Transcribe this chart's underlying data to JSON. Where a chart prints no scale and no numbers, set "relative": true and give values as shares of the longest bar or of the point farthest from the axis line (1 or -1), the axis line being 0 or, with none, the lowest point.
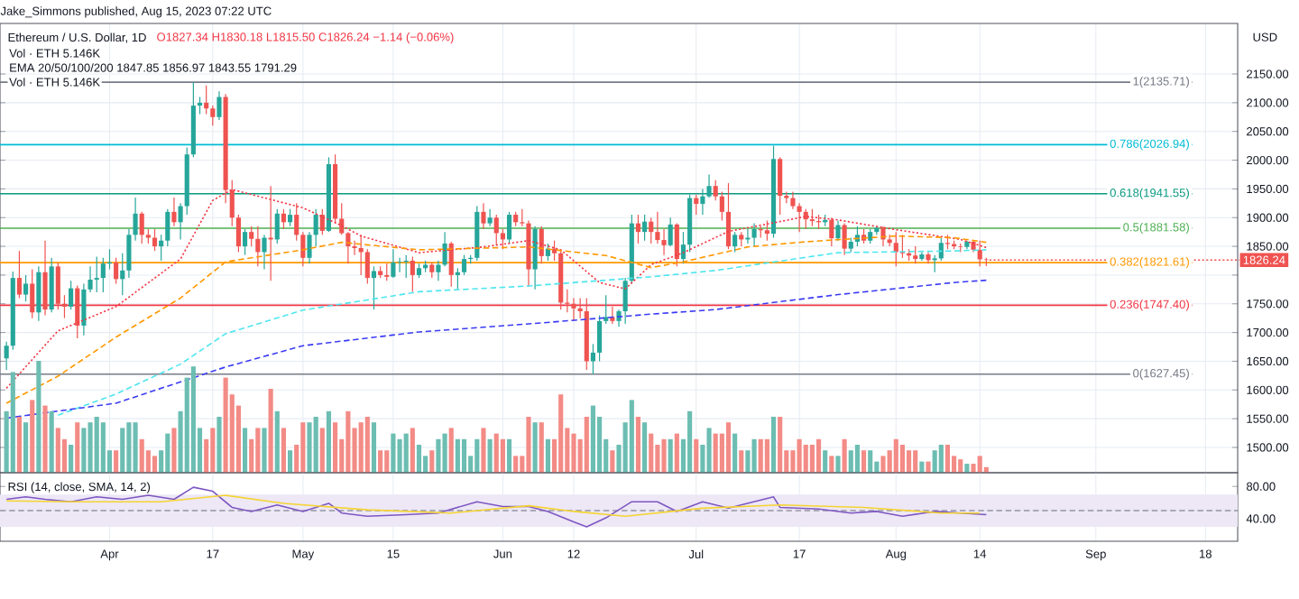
{
  "chart_data": [
    {
      "type": "candlestick",
      "subtitle": "Jake_Simmons published, Aug 15, 2023 07:22 UTC",
      "title": "Ethereum / U.S. Dollar, 1D",
      "ylabel": "USD",
      "annotations": [
        "O1827.34 H1830.18 L1815.50 C1826.24 −1.14 (−0.06%)",
        "Vol · ETH 5.146K",
        "EMA 20/50/100/200 1847.85 1856.97 1843.55 1791.29",
        "Vol · ETH 5.146K",
        {
          "text": "1826.24",
          "x": "2023-08-15",
          "y": 1826.24
        }
      ],
      "x": [
        "2023-03-16",
        "2023-03-17",
        "2023-03-18",
        "2023-03-19",
        "2023-03-20",
        "2023-03-21",
        "2023-03-22",
        "2023-03-23",
        "2023-03-24",
        "2023-03-25",
        "2023-03-26",
        "2023-03-27",
        "2023-03-28",
        "2023-03-29",
        "2023-03-30",
        "2023-03-31",
        "2023-04-01",
        "2023-04-02",
        "2023-04-03",
        "2023-04-04",
        "2023-04-05",
        "2023-04-06",
        "2023-04-07",
        "2023-04-08",
        "2023-04-09",
        "2023-04-10",
        "2023-04-11",
        "2023-04-12",
        "2023-04-13",
        "2023-04-14",
        "2023-04-15",
        "2023-04-16",
        "2023-04-17",
        "2023-04-18",
        "2023-04-19",
        "2023-04-20",
        "2023-04-21",
        "2023-04-22",
        "2023-04-23",
        "2023-04-24",
        "2023-04-25",
        "2023-04-26",
        "2023-04-27",
        "2023-04-28",
        "2023-04-29",
        "2023-04-30",
        "2023-05-01",
        "2023-05-02",
        "2023-05-03",
        "2023-05-04",
        "2023-05-05",
        "2023-05-06",
        "2023-05-07",
        "2023-05-08",
        "2023-05-09",
        "2023-05-10",
        "2023-05-11",
        "2023-05-12",
        "2023-05-13",
        "2023-05-14",
        "2023-05-15",
        "2023-05-16",
        "2023-05-17",
        "2023-05-18",
        "2023-05-19",
        "2023-05-20",
        "2023-05-21",
        "2023-05-22",
        "2023-05-23",
        "2023-05-24",
        "2023-05-25",
        "2023-05-26",
        "2023-05-27",
        "2023-05-28",
        "2023-05-29",
        "2023-05-30",
        "2023-05-31",
        "2023-06-01",
        "2023-06-02",
        "2023-06-03",
        "2023-06-04",
        "2023-06-05",
        "2023-06-06",
        "2023-06-07",
        "2023-06-08",
        "2023-06-09",
        "2023-06-10",
        "2023-06-11",
        "2023-06-12",
        "2023-06-13",
        "2023-06-14",
        "2023-06-15",
        "2023-06-16",
        "2023-06-17",
        "2023-06-18",
        "2023-06-19",
        "2023-06-20",
        "2023-06-21",
        "2023-06-22",
        "2023-06-23",
        "2023-06-24",
        "2023-06-25",
        "2023-06-26",
        "2023-06-27",
        "2023-06-28",
        "2023-06-29",
        "2023-06-30",
        "2023-07-01",
        "2023-07-02",
        "2023-07-03",
        "2023-07-04",
        "2023-07-05",
        "2023-07-06",
        "2023-07-07",
        "2023-07-08",
        "2023-07-09",
        "2023-07-10",
        "2023-07-11",
        "2023-07-12",
        "2023-07-13",
        "2023-07-14",
        "2023-07-15",
        "2023-07-16",
        "2023-07-17",
        "2023-07-18",
        "2023-07-19",
        "2023-07-20",
        "2023-07-21",
        "2023-07-22",
        "2023-07-23",
        "2023-07-24",
        "2023-07-25",
        "2023-07-26",
        "2023-07-27",
        "2023-07-28",
        "2023-07-29",
        "2023-07-30",
        "2023-07-31",
        "2023-08-01",
        "2023-08-02",
        "2023-08-03",
        "2023-08-04",
        "2023-08-05",
        "2023-08-06",
        "2023-08-07",
        "2023-08-08",
        "2023-08-09",
        "2023-08-10",
        "2023-08-11",
        "2023-08-12",
        "2023-08-13",
        "2023-08-14",
        "2023-08-15"
      ],
      "ohlc": [
        [
          1655,
          1684,
          1635,
          1677
        ],
        [
          1677,
          1806,
          1670,
          1795
        ],
        [
          1795,
          1842,
          1760,
          1766
        ],
        [
          1766,
          1800,
          1754,
          1785
        ],
        [
          1785,
          1810,
          1725,
          1735
        ],
        [
          1735,
          1815,
          1720,
          1805
        ],
        [
          1805,
          1860,
          1730,
          1740
        ],
        [
          1740,
          1830,
          1735,
          1815
        ],
        [
          1815,
          1822,
          1740,
          1750
        ],
        [
          1750,
          1765,
          1725,
          1745
        ],
        [
          1745,
          1790,
          1740,
          1777
        ],
        [
          1777,
          1782,
          1690,
          1712
        ],
        [
          1712,
          1785,
          1695,
          1775
        ],
        [
          1775,
          1815,
          1770,
          1792
        ],
        [
          1792,
          1832,
          1770,
          1795
        ],
        [
          1795,
          1830,
          1770,
          1820
        ],
        [
          1820,
          1845,
          1810,
          1822
        ],
        [
          1822,
          1830,
          1785,
          1793
        ],
        [
          1793,
          1838,
          1765,
          1808
        ],
        [
          1808,
          1880,
          1795,
          1870
        ],
        [
          1870,
          1935,
          1860,
          1907
        ],
        [
          1907,
          1910,
          1855,
          1870
        ],
        [
          1870,
          1880,
          1855,
          1865
        ],
        [
          1865,
          1880,
          1842,
          1850
        ],
        [
          1850,
          1870,
          1825,
          1860
        ],
        [
          1860,
          1915,
          1850,
          1910
        ],
        [
          1910,
          1935,
          1885,
          1892
        ],
        [
          1892,
          1925,
          1862,
          1920
        ],
        [
          1920,
          2022,
          1905,
          2010
        ],
        [
          2010,
          2135.71,
          2005,
          2095
        ],
        [
          2095,
          2110,
          2080,
          2100
        ],
        [
          2100,
          2130,
          2080,
          2090
        ],
        [
          2090,
          2095,
          2060,
          2075
        ],
        [
          2075,
          2120,
          2070,
          2110
        ],
        [
          2110,
          2115,
          1925,
          1948
        ],
        [
          1948,
          1965,
          1885,
          1900
        ],
        [
          1900,
          1905,
          1840,
          1850
        ],
        [
          1850,
          1880,
          1835,
          1875
        ],
        [
          1875,
          1885,
          1850,
          1863
        ],
        [
          1863,
          1885,
          1815,
          1840
        ],
        [
          1840,
          1870,
          1810,
          1865
        ],
        [
          1865,
          1955,
          1790,
          1862
        ],
        [
          1862,
          1915,
          1855,
          1907
        ],
        [
          1907,
          1915,
          1880,
          1892
        ],
        [
          1892,
          1915,
          1885,
          1905
        ],
        [
          1905,
          1925,
          1860,
          1870
        ],
        [
          1870,
          1875,
          1815,
          1830
        ],
        [
          1830,
          1875,
          1820,
          1870
        ],
        [
          1870,
          1915,
          1850,
          1905
        ],
        [
          1905,
          1915,
          1870,
          1877
        ],
        [
          1877,
          2005,
          1875,
          1993
        ],
        [
          1993,
          2010,
          1890,
          1898
        ],
        [
          1898,
          1925,
          1870,
          1873
        ],
        [
          1873,
          1875,
          1820,
          1850
        ],
        [
          1850,
          1860,
          1835,
          1847
        ],
        [
          1847,
          1870,
          1800,
          1840
        ],
        [
          1840,
          1845,
          1785,
          1795
        ],
        [
          1795,
          1815,
          1740,
          1807
        ],
        [
          1807,
          1815,
          1795,
          1800
        ],
        [
          1800,
          1820,
          1790,
          1797
        ],
        [
          1797,
          1845,
          1795,
          1822
        ],
        [
          1822,
          1830,
          1805,
          1823
        ],
        [
          1823,
          1835,
          1795,
          1825
        ],
        [
          1825,
          1832,
          1771,
          1800
        ],
        [
          1800,
          1820,
          1795,
          1812
        ],
        [
          1812,
          1825,
          1805,
          1818
        ],
        [
          1818,
          1822,
          1795,
          1805
        ],
        [
          1805,
          1825,
          1790,
          1818
        ],
        [
          1818,
          1875,
          1815,
          1855
        ],
        [
          1855,
          1858,
          1780,
          1800
        ],
        [
          1800,
          1812,
          1775,
          1805
        ],
        [
          1805,
          1835,
          1800,
          1828
        ],
        [
          1828,
          1835,
          1820,
          1830
        ],
        [
          1830,
          1920,
          1825,
          1910
        ],
        [
          1910,
          1925,
          1880,
          1890
        ],
        [
          1890,
          1915,
          1885,
          1900
        ],
        [
          1900,
          1905,
          1852,
          1873
        ],
        [
          1873,
          1880,
          1845,
          1862
        ],
        [
          1862,
          1910,
          1855,
          1905
        ],
        [
          1905,
          1910,
          1885,
          1892
        ],
        [
          1892,
          1915,
          1885,
          1890
        ],
        [
          1890,
          1895,
          1780,
          1810
        ],
        [
          1810,
          1885,
          1775,
          1880
        ],
        [
          1880,
          1885,
          1820,
          1833
        ],
        [
          1833,
          1855,
          1825,
          1846
        ],
        [
          1846,
          1860,
          1825,
          1838
        ],
        [
          1838,
          1842,
          1740,
          1752
        ],
        [
          1752,
          1775,
          1735,
          1750
        ],
        [
          1750,
          1760,
          1720,
          1742
        ],
        [
          1742,
          1760,
          1725,
          1737
        ],
        [
          1737,
          1760,
          1635,
          1650
        ],
        [
          1650,
          1680,
          1627.45,
          1665
        ],
        [
          1665,
          1730,
          1650,
          1720
        ],
        [
          1720,
          1765,
          1715,
          1727
        ],
        [
          1727,
          1745,
          1715,
          1720
        ],
        [
          1720,
          1740,
          1710,
          1737
        ],
        [
          1737,
          1795,
          1715,
          1790
        ],
        [
          1790,
          1905,
          1785,
          1890
        ],
        [
          1890,
          1905,
          1855,
          1875
        ],
        [
          1875,
          1905,
          1860,
          1893
        ],
        [
          1893,
          1900,
          1855,
          1875
        ],
        [
          1875,
          1910,
          1855,
          1861
        ],
        [
          1861,
          1880,
          1835,
          1852
        ],
        [
          1852,
          1900,
          1850,
          1888
        ],
        [
          1888,
          1890,
          1815,
          1828
        ],
        [
          1828,
          1875,
          1820,
          1853
        ],
        [
          1853,
          1940,
          1840,
          1934
        ],
        [
          1934,
          1940,
          1905,
          1924
        ],
        [
          1924,
          1950,
          1905,
          1937
        ],
        [
          1937,
          1975,
          1935,
          1955
        ],
        [
          1955,
          1965,
          1930,
          1937
        ],
        [
          1937,
          1945,
          1895,
          1910
        ],
        [
          1910,
          1960,
          1845,
          1850
        ],
        [
          1850,
          1875,
          1840,
          1870
        ],
        [
          1870,
          1875,
          1850,
          1862
        ],
        [
          1862,
          1880,
          1855,
          1865
        ],
        [
          1865,
          1890,
          1850,
          1880
        ],
        [
          1880,
          1885,
          1865,
          1878
        ],
        [
          1878,
          1895,
          1860,
          1872
        ],
        [
          1872,
          2025,
          1865,
          2002
        ],
        [
          2002,
          2005,
          1905,
          1938
        ],
        [
          1938,
          1945,
          1925,
          1934
        ],
        [
          1934,
          1945,
          1915,
          1920
        ],
        [
          1920,
          1925,
          1875,
          1910
        ],
        [
          1910,
          1915,
          1880,
          1897
        ],
        [
          1897,
          1915,
          1885,
          1894
        ],
        [
          1894,
          1905,
          1880,
          1892
        ],
        [
          1892,
          1905,
          1885,
          1896
        ],
        [
          1896,
          1900,
          1850,
          1864
        ],
        [
          1864,
          1895,
          1860,
          1887
        ],
        [
          1887,
          1890,
          1835,
          1846
        ],
        [
          1846,
          1865,
          1840,
          1858
        ],
        [
          1858,
          1885,
          1850,
          1870
        ],
        [
          1870,
          1880,
          1855,
          1860
        ],
        [
          1860,
          1880,
          1855,
          1875
        ],
        [
          1875,
          1885,
          1870,
          1882
        ],
        [
          1882,
          1885,
          1850,
          1862
        ],
        [
          1862,
          1870,
          1850,
          1856
        ],
        [
          1856,
          1875,
          1815,
          1840
        ],
        [
          1840,
          1870,
          1830,
          1838
        ],
        [
          1838,
          1845,
          1825,
          1834
        ],
        [
          1834,
          1850,
          1820,
          1828
        ],
        [
          1828,
          1840,
          1825,
          1836
        ],
        [
          1836,
          1840,
          1820,
          1826
        ],
        [
          1826,
          1835,
          1805,
          1829
        ],
        [
          1829,
          1865,
          1825,
          1856
        ],
        [
          1856,
          1870,
          1845,
          1854
        ],
        [
          1854,
          1860,
          1845,
          1850
        ],
        [
          1850,
          1855,
          1840,
          1849
        ],
        [
          1849,
          1860,
          1845,
          1858
        ],
        [
          1858,
          1860,
          1840,
          1844
        ],
        [
          1844,
          1860,
          1815,
          1827.34
        ],
        [
          1827.34,
          1830.18,
          1815.5,
          1826.24
        ]
      ],
      "colors": [
        "#26a69a",
        "#26a69a",
        "#ef5350",
        "#26a69a",
        "#ef5350",
        "#26a69a",
        "#ef5350",
        "#26a69a",
        "#ef5350",
        "#ef5350",
        "#26a69a",
        "#ef5350",
        "#26a69a",
        "#26a69a",
        "#26a69a",
        "#26a69a",
        "#26a69a",
        "#ef5350",
        "#26a69a",
        "#26a69a",
        "#26a69a",
        "#ef5350",
        "#ef5350",
        "#ef5350",
        "#26a69a",
        "#26a69a",
        "#ef5350",
        "#26a69a",
        "#26a69a",
        "#26a69a",
        "#26a69a",
        "#ef5350",
        "#ef5350",
        "#26a69a",
        "#ef5350",
        "#ef5350",
        "#ef5350",
        "#26a69a",
        "#ef5350",
        "#ef5350",
        "#26a69a",
        "#ef5350",
        "#26a69a",
        "#ef5350",
        "#26a69a",
        "#ef5350",
        "#ef5350",
        "#26a69a",
        "#26a69a",
        "#ef5350",
        "#26a69a",
        "#ef5350",
        "#ef5350",
        "#ef5350",
        "#ef5350",
        "#ef5350",
        "#ef5350",
        "#26a69a",
        "#ef5350",
        "#ef5350",
        "#26a69a",
        "#26a69a",
        "#26a69a",
        "#ef5350",
        "#26a69a",
        "#26a69a",
        "#ef5350",
        "#26a69a",
        "#26a69a",
        "#ef5350",
        "#26a69a",
        "#26a69a",
        "#26a69a",
        "#26a69a",
        "#ef5350",
        "#26a69a",
        "#ef5350",
        "#ef5350",
        "#26a69a",
        "#ef5350",
        "#ef5350",
        "#ef5350",
        "#26a69a",
        "#ef5350",
        "#26a69a",
        "#ef5350",
        "#ef5350",
        "#ef5350",
        "#ef5350",
        "#ef5350",
        "#ef5350",
        "#26a69a",
        "#26a69a",
        "#26a69a",
        "#ef5350",
        "#26a69a",
        "#26a69a",
        "#26a69a",
        "#ef5350",
        "#26a69a",
        "#ef5350",
        "#ef5350",
        "#ef5350",
        "#26a69a",
        "#ef5350",
        "#26a69a",
        "#26a69a",
        "#ef5350",
        "#26a69a",
        "#26a69a",
        "#ef5350",
        "#ef5350",
        "#ef5350",
        "#26a69a",
        "#ef5350",
        "#26a69a",
        "#26a69a",
        "#ef5350",
        "#ef5350",
        "#26a69a",
        "#ef5350",
        "#ef5350",
        "#ef5350",
        "#ef5350",
        "#ef5350",
        "#ef5350",
        "#ef5350",
        "#26a69a",
        "#ef5350",
        "#26a69a",
        "#ef5350",
        "#26a69a",
        "#26a69a",
        "#ef5350",
        "#26a69a",
        "#26a69a",
        "#ef5350",
        "#ef5350",
        "#ef5350",
        "#ef5350",
        "#ef5350",
        "#ef5350",
        "#26a69a",
        "#ef5350",
        "#26a69a",
        "#26a69a",
        "#ef5350",
        "#ef5350",
        "#ef5350",
        "#26a69a",
        "#ef5350",
        "#ef5350",
        "#ef5350"
      ],
      "series": [
        {
          "type": "line",
          "color": "#f23645",
          "line_style": "dotted",
          "x": [
            "2023-03-16",
            "2023-03-24",
            "2023-04-02",
            "2023-04-12",
            "2023-04-17",
            "2023-04-20",
            "2023-05-01",
            "2023-05-07",
            "2023-05-10",
            "2023-05-19",
            "2023-05-29",
            "2023-06-05",
            "2023-06-10",
            "2023-06-16",
            "2023-06-20",
            "2023-06-24",
            "2023-06-29",
            "2023-07-06",
            "2023-07-13",
            "2023-07-18",
            "2023-07-23",
            "2023-08-01",
            "2023-08-11",
            "2023-08-15"
          ],
          "values": [
            1603,
            1703,
            1745,
            1828,
            1930,
            1949,
            1917,
            1886,
            1868,
            1839,
            1849,
            1860,
            1844,
            1787,
            1776,
            1818,
            1839,
            1876,
            1891,
            1902,
            1896,
            1879,
            1862,
            1848
          ]
        },
        {
          "type": "line",
          "color": "#ff9800",
          "line_style": "dashed",
          "x": [
            "2023-03-16",
            "2023-03-24",
            "2023-04-02",
            "2023-04-12",
            "2023-04-19",
            "2023-05-01",
            "2023-05-07",
            "2023-05-19",
            "2023-06-05",
            "2023-06-17",
            "2023-06-24",
            "2023-06-29",
            "2023-07-09",
            "2023-07-18",
            "2023-08-01",
            "2023-08-10",
            "2023-08-15"
          ],
          "values": [
            1577,
            1624,
            1692,
            1760,
            1823,
            1844,
            1857,
            1844,
            1849,
            1834,
            1813,
            1823,
            1849,
            1858,
            1868,
            1865,
            1857
          ]
        },
        {
          "type": "line",
          "color": "#4ee6ee",
          "line_style": "dashed",
          "x": [
            "2023-03-24",
            "2023-04-02",
            "2023-04-12",
            "2023-04-19",
            "2023-05-01",
            "2023-05-19",
            "2023-06-05",
            "2023-06-24",
            "2023-07-04",
            "2023-07-23",
            "2023-08-10",
            "2023-08-15"
          ],
          "values": [
            1556,
            1593,
            1645,
            1698,
            1739,
            1771,
            1781,
            1797,
            1808,
            1839,
            1842,
            1844
          ]
        },
        {
          "type": "line",
          "color": "#3b3bf5",
          "line_style": "dashed",
          "x": [
            "2023-03-16",
            "2023-04-02",
            "2023-04-19",
            "2023-05-01",
            "2023-05-19",
            "2023-06-05",
            "2023-06-24",
            "2023-07-04",
            "2023-07-23",
            "2023-08-10",
            "2023-08-15"
          ],
          "values": [
            1551,
            1577,
            1640,
            1677,
            1701,
            1715,
            1732,
            1740,
            1766,
            1787,
            1791
          ]
        }
      ],
      "xlim": [
        "2023-03-15",
        "2023-09-23"
      ],
      "ylim": [
        1456,
        2238
      ],
      "xticks": [
        {
          "value": "2023-04-01",
          "label": null
        },
        {
          "value": "2023-04-17",
          "label": null
        },
        {
          "value": "2023-05-01",
          "label": null
        },
        {
          "value": "2023-05-15",
          "label": null
        },
        {
          "value": "2023-06-01",
          "label": null
        },
        {
          "value": "2023-06-12",
          "label": null
        },
        {
          "value": "2023-07-01",
          "label": null
        },
        {
          "value": "2023-07-17",
          "label": null
        },
        {
          "value": "2023-08-01",
          "label": null
        },
        {
          "value": "2023-08-14",
          "label": null
        },
        {
          "value": "2023-09-01",
          "label": null
        },
        {
          "value": "2023-09-18",
          "label": null
        }
      ],
      "yticks": [
        {
          "value": 1500,
          "label": "1500.00"
        },
        {
          "value": 1550,
          "label": "1550.00"
        },
        {
          "value": 1600,
          "label": "1600.00"
        },
        {
          "value": 1650,
          "label": "1650.00"
        },
        {
          "value": 1700,
          "label": "1700.00"
        },
        {
          "value": 1750,
          "label": "1750.00"
        },
        {
          "value": 1800,
          "label": null
        },
        {
          "value": 1850,
          "label": "1850.00"
        },
        {
          "value": 1900,
          "label": "1900.00"
        },
        {
          "value": 1950,
          "label": "1950.00"
        },
        {
          "value": 2000,
          "label": "2000.00"
        },
        {
          "value": 2050,
          "label": "2050.00"
        },
        {
          "value": 2100,
          "label": "2100.00"
        },
        {
          "value": 2150,
          "label": "2150.00"
        }
      ],
      "ref_lines": [
        {
          "axis": "y",
          "value": 2135.71,
          "label": "1(2135.71)",
          "color": "#787b86",
          "line_style": "solid"
        },
        {
          "axis": "y",
          "value": 2026.94,
          "label": "0.786(2026.94)",
          "color": "#00bcd4",
          "line_style": "solid"
        },
        {
          "axis": "y",
          "value": 1941.55,
          "label": "0.618(1941.55)",
          "color": "#089981",
          "line_style": "solid"
        },
        {
          "axis": "y",
          "value": 1881.58,
          "label": "0.5(1881.58)",
          "color": "#4caf50",
          "line_style": "solid"
        },
        {
          "axis": "y",
          "value": 1821.61,
          "label": "0.382(1821.61)",
          "color": "#ff9800",
          "line_style": "solid"
        },
        {
          "axis": "y",
          "value": 1747.4,
          "label": "0.236(1747.40)",
          "color": "#f23645",
          "line_style": "solid"
        },
        {
          "axis": "y",
          "value": 1627.45,
          "label": "0(1627.45)",
          "color": "#787b86",
          "line_style": "solid"
        }
      ],
      "grid": true,
      "tick_labels": "y"
    },
    {
      "type": "bar",
      "relative": true,
      "tick_labels": false,
      "xlim": [
        "2023-03-15",
        "2023-09-23"
      ],
      "x": [
        "2023-03-16",
        "2023-03-17",
        "2023-03-18",
        "2023-03-19",
        "2023-03-20",
        "2023-03-21",
        "2023-03-22",
        "2023-03-23",
        "2023-03-24",
        "2023-03-25",
        "2023-03-26",
        "2023-03-27",
        "2023-03-28",
        "2023-03-29",
        "2023-03-30",
        "2023-03-31",
        "2023-04-01",
        "2023-04-02",
        "2023-04-03",
        "2023-04-04",
        "2023-04-05",
        "2023-04-06",
        "2023-04-07",
        "2023-04-08",
        "2023-04-09",
        "2023-04-10",
        "2023-04-11",
        "2023-04-12",
        "2023-04-13",
        "2023-04-14",
        "2023-04-15",
        "2023-04-16",
        "2023-04-17",
        "2023-04-18",
        "2023-04-19",
        "2023-04-20",
        "2023-04-21",
        "2023-04-22",
        "2023-04-23",
        "2023-04-24",
        "2023-04-25",
        "2023-04-26",
        "2023-04-27",
        "2023-04-28",
        "2023-04-29",
        "2023-04-30",
        "2023-05-01",
        "2023-05-02",
        "2023-05-03",
        "2023-05-04",
        "2023-05-05",
        "2023-05-06",
        "2023-05-07",
        "2023-05-08",
        "2023-05-09",
        "2023-05-10",
        "2023-05-11",
        "2023-05-12",
        "2023-05-13",
        "2023-05-14",
        "2023-05-15",
        "2023-05-16",
        "2023-05-17",
        "2023-05-18",
        "2023-05-19",
        "2023-05-20",
        "2023-05-21",
        "2023-05-22",
        "2023-05-23",
        "2023-05-24",
        "2023-05-25",
        "2023-05-26",
        "2023-05-27",
        "2023-05-28",
        "2023-05-29",
        "2023-05-30",
        "2023-05-31",
        "2023-06-01",
        "2023-06-02",
        "2023-06-03",
        "2023-06-04",
        "2023-06-05",
        "2023-06-06",
        "2023-06-07",
        "2023-06-08",
        "2023-06-09",
        "2023-06-10",
        "2023-06-11",
        "2023-06-12",
        "2023-06-13",
        "2023-06-14",
        "2023-06-15",
        "2023-06-16",
        "2023-06-17",
        "2023-06-18",
        "2023-06-19",
        "2023-06-20",
        "2023-06-21",
        "2023-06-22",
        "2023-06-23",
        "2023-06-24",
        "2023-06-25",
        "2023-06-26",
        "2023-06-27",
        "2023-06-28",
        "2023-06-29",
        "2023-06-30",
        "2023-07-01",
        "2023-07-02",
        "2023-07-03",
        "2023-07-04",
        "2023-07-05",
        "2023-07-06",
        "2023-07-07",
        "2023-07-08",
        "2023-07-09",
        "2023-07-10",
        "2023-07-11",
        "2023-07-12",
        "2023-07-13",
        "2023-07-14",
        "2023-07-15",
        "2023-07-16",
        "2023-07-17",
        "2023-07-18",
        "2023-07-19",
        "2023-07-20",
        "2023-07-21",
        "2023-07-22",
        "2023-07-23",
        "2023-07-24",
        "2023-07-25",
        "2023-07-26",
        "2023-07-27",
        "2023-07-28",
        "2023-07-29",
        "2023-07-30",
        "2023-07-31",
        "2023-08-01",
        "2023-08-02",
        "2023-08-03",
        "2023-08-04",
        "2023-08-05",
        "2023-08-06",
        "2023-08-07",
        "2023-08-08",
        "2023-08-09",
        "2023-08-10",
        "2023-08-11",
        "2023-08-12",
        "2023-08-13",
        "2023-08-14",
        "2023-08-15"
      ],
      "values": [
        0.55,
        0.9,
        0.5,
        0.45,
        0.65,
        1.0,
        0.6,
        0.55,
        0.4,
        0.3,
        0.25,
        0.45,
        0.4,
        0.45,
        0.5,
        0.45,
        0.2,
        0.2,
        0.4,
        0.45,
        0.45,
        0.3,
        0.2,
        0.15,
        0.2,
        0.35,
        0.4,
        0.55,
        0.85,
        0.95,
        0.4,
        0.3,
        0.4,
        0.5,
        0.85,
        0.7,
        0.6,
        0.4,
        0.3,
        0.4,
        0.4,
        0.75,
        0.55,
        0.4,
        0.2,
        0.25,
        0.45,
        0.45,
        0.5,
        0.4,
        0.55,
        0.45,
        0.3,
        0.55,
        0.4,
        0.45,
        0.5,
        0.45,
        0.2,
        0.2,
        0.35,
        0.3,
        0.35,
        0.4,
        0.25,
        0.15,
        0.2,
        0.3,
        0.35,
        0.4,
        0.3,
        0.3,
        0.15,
        0.3,
        0.4,
        0.3,
        0.35,
        0.3,
        0.3,
        0.15,
        0.15,
        0.5,
        0.45,
        0.45,
        0.3,
        0.3,
        0.7,
        0.4,
        0.35,
        0.3,
        0.5,
        0.6,
        0.5,
        0.3,
        0.2,
        0.25,
        0.45,
        0.65,
        0.5,
        0.45,
        0.35,
        0.25,
        0.3,
        0.3,
        0.35,
        0.3,
        0.55,
        0.3,
        0.25,
        0.4,
        0.35,
        0.35,
        0.45,
        0.35,
        0.2,
        0.2,
        0.3,
        0.3,
        0.3,
        0.5,
        0.5,
        0.2,
        0.2,
        0.3,
        0.25,
        0.25,
        0.3,
        0.2,
        0.15,
        0.15,
        0.3,
        0.2,
        0.25,
        0.2,
        0.2,
        0.1,
        0.15,
        0.2,
        0.3,
        0.25,
        0.2,
        0.2,
        0.1,
        0.1,
        0.2,
        0.25,
        0.25,
        0.15,
        0.12,
        0.08,
        0.08,
        0.15,
        0.05
      ],
      "colors": [
        "#6cbdb2",
        "#6cbdb2",
        "#f38b86",
        "#6cbdb2",
        "#f38b86",
        "#6cbdb2",
        "#f38b86",
        "#6cbdb2",
        "#f38b86",
        "#f38b86",
        "#6cbdb2",
        "#f38b86",
        "#6cbdb2",
        "#6cbdb2",
        "#6cbdb2",
        "#6cbdb2",
        "#6cbdb2",
        "#f38b86",
        "#6cbdb2",
        "#6cbdb2",
        "#6cbdb2",
        "#f38b86",
        "#f38b86",
        "#f38b86",
        "#6cbdb2",
        "#6cbdb2",
        "#f38b86",
        "#6cbdb2",
        "#6cbdb2",
        "#6cbdb2",
        "#6cbdb2",
        "#f38b86",
        "#f38b86",
        "#6cbdb2",
        "#f38b86",
        "#f38b86",
        "#f38b86",
        "#6cbdb2",
        "#f38b86",
        "#f38b86",
        "#6cbdb2",
        "#f38b86",
        "#6cbdb2",
        "#f38b86",
        "#6cbdb2",
        "#f38b86",
        "#f38b86",
        "#6cbdb2",
        "#6cbdb2",
        "#f38b86",
        "#6cbdb2",
        "#f38b86",
        "#f38b86",
        "#f38b86",
        "#f38b86",
        "#f38b86",
        "#f38b86",
        "#6cbdb2",
        "#f38b86",
        "#f38b86",
        "#6cbdb2",
        "#6cbdb2",
        "#6cbdb2",
        "#f38b86",
        "#6cbdb2",
        "#6cbdb2",
        "#f38b86",
        "#6cbdb2",
        "#6cbdb2",
        "#f38b86",
        "#6cbdb2",
        "#6cbdb2",
        "#6cbdb2",
        "#6cbdb2",
        "#f38b86",
        "#6cbdb2",
        "#f38b86",
        "#f38b86",
        "#6cbdb2",
        "#f38b86",
        "#f38b86",
        "#f38b86",
        "#6cbdb2",
        "#f38b86",
        "#6cbdb2",
        "#f38b86",
        "#f38b86",
        "#f38b86",
        "#f38b86",
        "#f38b86",
        "#f38b86",
        "#6cbdb2",
        "#6cbdb2",
        "#6cbdb2",
        "#f38b86",
        "#6cbdb2",
        "#6cbdb2",
        "#6cbdb2",
        "#f38b86",
        "#6cbdb2",
        "#f38b86",
        "#f38b86",
        "#f38b86",
        "#6cbdb2",
        "#f38b86",
        "#6cbdb2",
        "#6cbdb2",
        "#f38b86",
        "#6cbdb2",
        "#6cbdb2",
        "#f38b86",
        "#f38b86",
        "#f38b86",
        "#6cbdb2",
        "#f38b86",
        "#6cbdb2",
        "#6cbdb2",
        "#f38b86",
        "#f38b86",
        "#6cbdb2",
        "#f38b86",
        "#f38b86",
        "#f38b86",
        "#f38b86",
        "#f38b86",
        "#f38b86",
        "#f38b86",
        "#6cbdb2",
        "#f38b86",
        "#6cbdb2",
        "#f38b86",
        "#6cbdb2",
        "#6cbdb2",
        "#f38b86",
        "#6cbdb2",
        "#6cbdb2",
        "#f38b86",
        "#f38b86",
        "#f38b86",
        "#f38b86",
        "#f38b86",
        "#f38b86",
        "#6cbdb2",
        "#f38b86",
        "#6cbdb2",
        "#6cbdb2",
        "#f38b86",
        "#f38b86",
        "#f38b86",
        "#6cbdb2",
        "#f38b86",
        "#f38b86",
        "#f38b86"
      ]
    },
    {
      "type": "line",
      "title": "RSI (14, close, SMA, 14, 2)",
      "series": [
        {
          "color": "#7e57c2",
          "x": [
            "2023-03-16",
            "2023-03-19",
            "2023-03-22",
            "2023-03-26",
            "2023-03-30",
            "2023-04-03",
            "2023-04-07",
            "2023-04-11",
            "2023-04-14",
            "2023-04-17",
            "2023-04-20",
            "2023-04-23",
            "2023-04-27",
            "2023-05-01",
            "2023-05-05",
            "2023-05-07",
            "2023-05-11",
            "2023-05-17",
            "2023-05-22",
            "2023-05-28",
            "2023-06-01",
            "2023-06-05",
            "2023-06-08",
            "2023-06-12",
            "2023-06-14",
            "2023-06-17",
            "2023-06-21",
            "2023-06-25",
            "2023-06-28",
            "2023-07-02",
            "2023-07-06",
            "2023-07-13",
            "2023-07-14",
            "2023-07-20",
            "2023-07-25",
            "2023-07-29",
            "2023-08-02",
            "2023-08-07",
            "2023-08-11",
            "2023-08-15"
          ],
          "values": [
            64,
            67,
            64,
            61,
            67,
            64,
            69,
            64,
            79,
            74,
            54,
            49,
            57,
            49,
            59,
            47,
            43,
            45,
            47,
            61,
            55,
            55,
            49,
            36,
            30,
            41,
            61,
            61,
            49,
            61,
            53,
            67,
            54,
            52,
            47,
            49,
            43,
            49,
            47,
            45
          ]
        },
        {
          "color": "#f5d431",
          "x": [
            "2023-03-16",
            "2023-03-27",
            "2023-04-09",
            "2023-04-19",
            "2023-04-28",
            "2023-05-11",
            "2023-05-24",
            "2023-06-05",
            "2023-06-12",
            "2023-06-20",
            "2023-07-02",
            "2023-07-14",
            "2023-07-27",
            "2023-08-08",
            "2023-08-14"
          ],
          "values": [
            62,
            61,
            61,
            69,
            59,
            51,
            47,
            56,
            49,
            43,
            53,
            57,
            54,
            47,
            47
          ]
        }
      ],
      "xlim": [
        "2023-03-15",
        "2023-09-23"
      ],
      "ylim": [
        12,
        97
      ],
      "xticks": [
        {
          "value": "2023-04-01",
          "label": "Apr"
        },
        {
          "value": "2023-04-17",
          "label": "17"
        },
        {
          "value": "2023-05-01",
          "label": "May"
        },
        {
          "value": "2023-05-15",
          "label": "15"
        },
        {
          "value": "2023-06-01",
          "label": "Jun"
        },
        {
          "value": "2023-06-12",
          "label": "12"
        },
        {
          "value": "2023-07-01",
          "label": "Jul"
        },
        {
          "value": "2023-07-17",
          "label": "17"
        },
        {
          "value": "2023-08-01",
          "label": "Aug"
        },
        {
          "value": "2023-08-14",
          "label": "14"
        },
        {
          "value": "2023-09-01",
          "label": "Sep"
        },
        {
          "value": "2023-09-18",
          "label": "18"
        }
      ],
      "yticks": [
        {
          "value": 40,
          "label": "40.00"
        },
        {
          "value": 80,
          "label": "80.00"
        }
      ],
      "bands": [
        {
          "axis": "y",
          "from": 30,
          "to": 70,
          "color": "#ede7f6"
        }
      ],
      "ref_lines": [
        {
          "axis": "y",
          "value": 50,
          "color": "#9598a1",
          "line_style": "dashed"
        }
      ],
      "grid": "x"
    }
  ]
}
